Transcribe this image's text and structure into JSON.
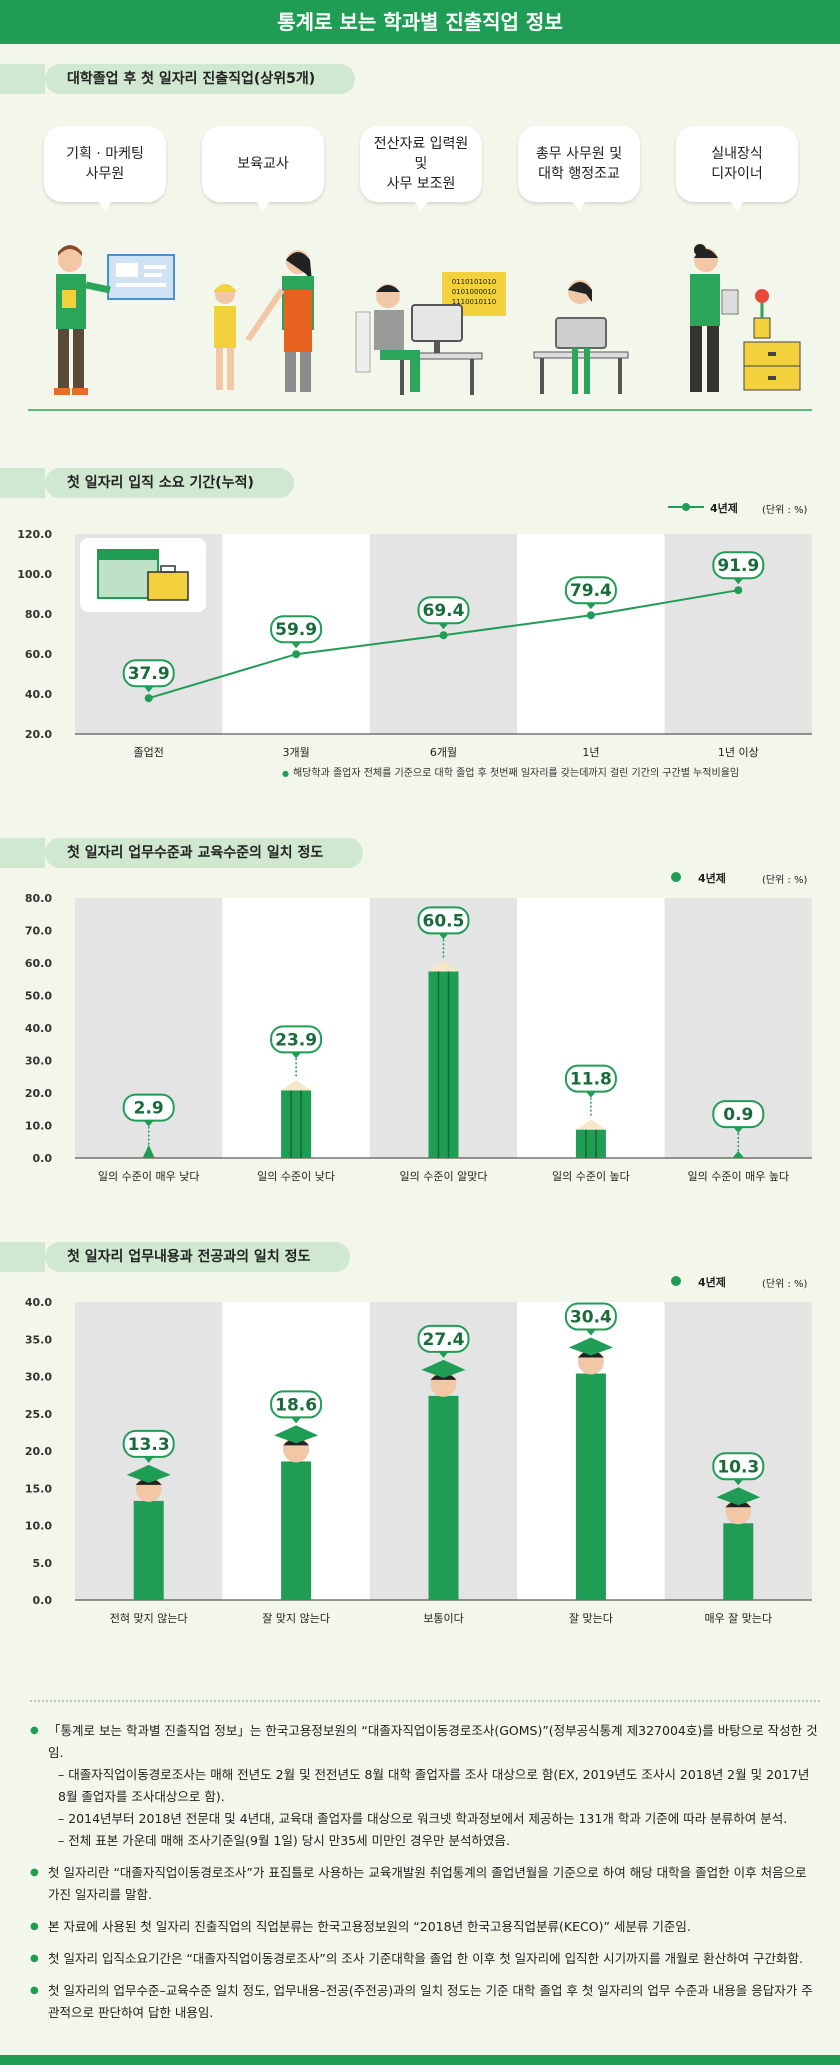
{
  "title": "통계로 보는 학과별 진출직업 정보",
  "sections": {
    "jobs": "대학졸업 후 첫 일자리 진출직업(상위5개)",
    "duration": "첫 일자리 입직 소요 기간(누적)",
    "level": "첫 일자리 업무수준과 교육수준의 일치 정도",
    "content": "첫 일자리 업무내용과 전공과의 일치 정도"
  },
  "jobs": [
    "기획 · 마케팅\n사무원",
    "보육교사",
    "전산자료 입력원 및\n사무 보조원",
    "총무 사무원 및\n대학 행정조교",
    "실내장식\n디자이너"
  ],
  "binary_text": [
    "0110101010",
    "0101000010",
    "1110010110"
  ],
  "legend_label": "4년제",
  "unit_label": "(단위 : %)",
  "colors": {
    "accent": "#1f9d55",
    "band_dark": "#e4e4e4",
    "band_light": "#ffffff"
  },
  "chart_data": [
    {
      "type": "line",
      "title": "첫 일자리 입직 소요 기간(누적)",
      "series": [
        {
          "name": "4년제",
          "values": [
            37.9,
            59.9,
            69.4,
            79.4,
            91.9
          ]
        }
      ],
      "categories": [
        "졸업전",
        "3개월",
        "6개월",
        "1년",
        "1년 이상"
      ],
      "ylim": [
        20,
        120
      ],
      "yticks": [
        "120.0",
        "100.0",
        "80.0",
        "60.0",
        "40.0",
        "20.0"
      ],
      "unit": "(단위 : %)",
      "footnote": "해당학과 졸업자 전체를 기준으로 대학 졸업 후 첫번째 일자리를 갖는데까지 걸린 기간의 구간별 누적비율임"
    },
    {
      "type": "bar",
      "title": "첫 일자리 업무수준과 교육수준의 일치 정도",
      "series": [
        {
          "name": "4년제",
          "values": [
            2.9,
            23.9,
            60.5,
            11.8,
            0.9
          ]
        }
      ],
      "categories": [
        "일의 수준이 매우 낮다",
        "일의 수준이 낮다",
        "일의 수준이 알맞다",
        "일의 수준이 높다",
        "일의 수준이 매우 높다"
      ],
      "ylim": [
        0,
        80
      ],
      "yticks": [
        "80.0",
        "70.0",
        "60.0",
        "50.0",
        "40.0",
        "30.0",
        "20.0",
        "10.0",
        "0.0"
      ],
      "unit": "(단위 : %)"
    },
    {
      "type": "bar",
      "title": "첫 일자리 업무내용과 전공과의 일치 정도",
      "series": [
        {
          "name": "4년제",
          "values": [
            13.3,
            18.6,
            27.4,
            30.4,
            10.3
          ]
        }
      ],
      "categories": [
        "전혀 맞지 않는다",
        "잘 맞지 않는다",
        "보통이다",
        "잘 맞는다",
        "매우 잘 맞는다"
      ],
      "ylim": [
        0,
        40
      ],
      "yticks": [
        "40.0",
        "35.0",
        "30.0",
        "25.0",
        "20.0",
        "15.0",
        "10.0",
        "5.0",
        "0.0"
      ],
      "unit": "(단위 : %)"
    }
  ],
  "notes": [
    {
      "text": "「통계로 보는 학과별 진출직업 정보」는 한국고용정보원의 “대졸자직업이동경로조사(GOMS)”(정부공식통계 제327004호)를 바탕으로 작성한 것임.",
      "subs": [
        "– 대졸자직업이동경로조사는 매해 전년도 2월 및 전전년도 8월 대학 졸업자를 조사 대상으로 함(EX, 2019년도 조사시 2018년 2월 및 2017년 8월 졸업자를 조사대상으로 함).",
        "– 2014년부터 2018년 전문대 및 4년대, 교육대 졸업자를 대상으로 워크넷 학과정보에서 제공하는 131개 학과 기준에 따라 분류하여 분석.",
        "– 전체 표본 가운데 매해 조사기준일(9월 1일) 당시 만35세 미만인 경우만 분석하였음."
      ]
    },
    {
      "text": "첫 일자리란 “대졸자직업이동경로조사”가 표집틀로 사용하는 교육개발원 취업통계의 졸업년월을 기준으로 하여 해당 대학을 졸업한 이후 처음으로 가진 일자리를 말함.",
      "subs": []
    },
    {
      "text": "본 자료에 사용된 첫 일자리 진출직업의 직업분류는 한국고용정보원의 “2018년 한국고용직업분류(KECO)” 세분류 기준임.",
      "subs": []
    },
    {
      "text": "첫 일자리 입직소요기간은 “대졸자직업이동경로조사”의 조사 기준대학을 졸업 한 이후 첫 일자리에 입직한 시기까지를 개월로 환산하여 구간화함.",
      "subs": []
    },
    {
      "text": "첫 일자리의 업무수준–교육수준 일치 정도, 업무내용–전공(주전공)과의 일치 정도는 기준 대학 졸업 후 첫 일자리의 업무 수준과 내용을 응답자가 주관적으로 판단하여 답한 내용임.",
      "subs": []
    }
  ]
}
